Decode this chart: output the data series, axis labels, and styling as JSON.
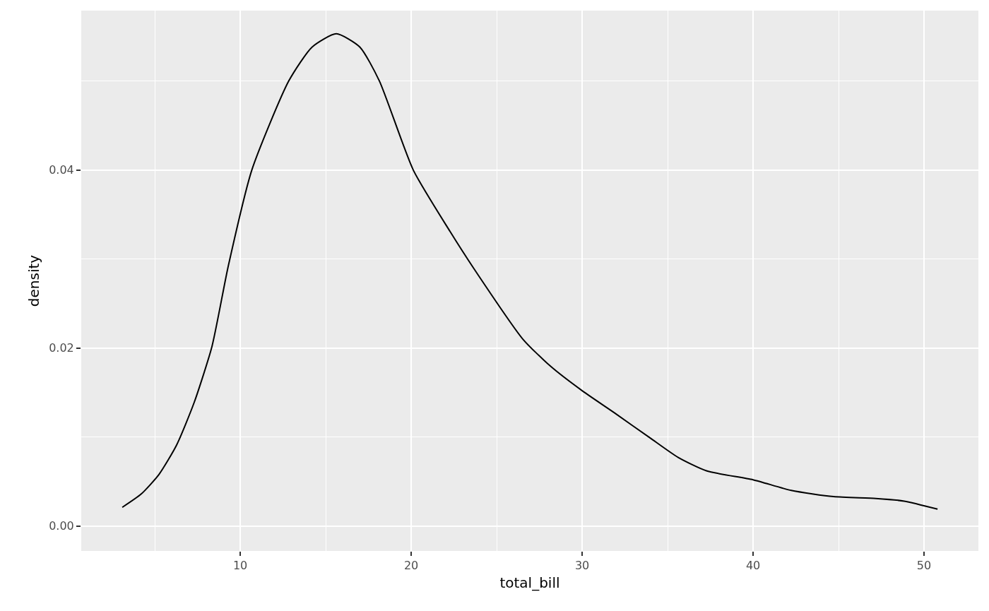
{
  "chart_data": {
    "type": "line",
    "xlabel": "total_bill",
    "ylabel": "density",
    "x": [
      3.1,
      4.21,
      5.25,
      6.28,
      7.31,
      8.35,
      9.3,
      10.68,
      12.84,
      14.2,
      15.62,
      17,
      18.14,
      20.12,
      22.27,
      23.64,
      26.53,
      28.18,
      30,
      31.9,
      33.97,
      35.62,
      37.27,
      40,
      42.23,
      44.71,
      47.19,
      48.84,
      50.79
    ],
    "series": [
      {
        "color": "#000000",
        "values": [
          0.0021,
          0.0036,
          0.0058,
          0.0091,
          0.0139,
          0.0202,
          0.0292,
          0.04,
          0.05,
          0.0538,
          0.0553,
          0.0538,
          0.05,
          0.04,
          0.0331,
          0.029,
          0.021,
          0.0179,
          0.0152,
          0.0127,
          0.0099,
          0.0077,
          0.0062,
          0.0052,
          0.004,
          0.0033,
          0.0031,
          0.0028,
          0.0019
        ]
      }
    ],
    "xlim": [
      0.7,
      53.18
    ],
    "ylim": [
      -0.0028,
      0.0579
    ],
    "xticks": [
      {
        "value": 5,
        "label": null
      },
      10,
      {
        "value": 15,
        "label": null
      },
      20,
      {
        "value": 25,
        "label": null
      },
      30,
      {
        "value": 35,
        "label": null
      },
      40,
      {
        "value": 45,
        "label": null
      },
      50
    ],
    "yticks": [
      {
        "value": 0,
        "label": "0.00"
      },
      {
        "value": 0.01,
        "label": null
      },
      {
        "value": 0.02,
        "label": "0.02"
      },
      {
        "value": 0.03,
        "label": null
      },
      {
        "value": 0.04,
        "label": "0.04"
      },
      {
        "value": 0.05,
        "label": null
      }
    ],
    "grid": true,
    "line_style": "solid"
  }
}
